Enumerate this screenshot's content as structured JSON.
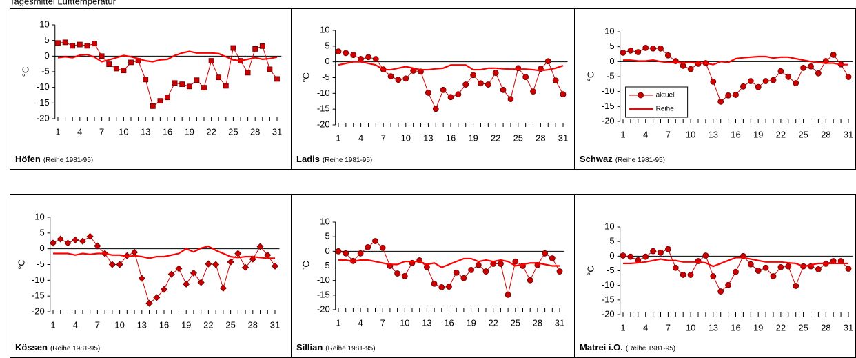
{
  "title": "Tagesmittel Lufttemperatur",
  "chart_data": [
    {
      "type": "line",
      "station": "Höfen",
      "note": "(Reihe 1981-95)",
      "ylabel": "°C",
      "marker": "square",
      "x": [
        1,
        2,
        3,
        4,
        5,
        6,
        7,
        8,
        9,
        10,
        11,
        12,
        13,
        14,
        15,
        16,
        17,
        18,
        19,
        20,
        21,
        22,
        23,
        24,
        25,
        26,
        27,
        28,
        29,
        30,
        31
      ],
      "xlim": [
        0.6,
        31.6
      ],
      "xticks": [
        1,
        4,
        7,
        10,
        13,
        16,
        19,
        22,
        25,
        28,
        31
      ],
      "ylim": [
        -20,
        10
      ],
      "yticks": [
        -20,
        -15,
        -10,
        -5,
        0,
        5,
        10
      ],
      "series": [
        {
          "color": "#cc0000",
          "values": [
            4.2,
            4.4,
            3.3,
            3.7,
            3.3,
            4.0,
            0,
            -2.6,
            -4,
            -4.6,
            -2,
            -1.5,
            -7.5,
            -16,
            -14.3,
            -13.2,
            -8.6,
            -9,
            -9.7,
            -7.7,
            -10.1,
            -1.5,
            -6.8,
            -9.5,
            2.6,
            -1.5,
            -5.3,
            2.3,
            3.2,
            -4.2,
            -7.3
          ]
        },
        {
          "color": "#ff0000",
          "values": [
            -0.5,
            -0.2,
            -0.5,
            0.3,
            0.5,
            -0.3,
            -1.8,
            -1.2,
            -0.5,
            0.2,
            -0.2,
            -0.8,
            -1.5,
            -1.8,
            -1.2,
            -1.0,
            0.2,
            1.0,
            1.5,
            1.0,
            1.0,
            1.0,
            0.8,
            -0.2,
            -1.2,
            -1.5,
            -1.0,
            -0.5,
            -1.0,
            -0.8,
            -0.3
          ]
        }
      ]
    },
    {
      "type": "line",
      "station": "Ladis",
      "note": "(Reihe 1981-95)",
      "ylabel": "°C",
      "marker": "circle",
      "x": [
        1,
        2,
        3,
        4,
        5,
        6,
        7,
        8,
        9,
        10,
        11,
        12,
        13,
        14,
        15,
        16,
        17,
        18,
        19,
        20,
        21,
        22,
        23,
        24,
        25,
        26,
        27,
        28,
        29,
        30,
        31
      ],
      "xlim": [
        0.6,
        31.6
      ],
      "xticks": [
        1,
        4,
        7,
        10,
        13,
        16,
        19,
        22,
        25,
        28,
        31
      ],
      "ylim": [
        -20,
        10
      ],
      "yticks": [
        -20,
        -15,
        -10,
        -5,
        0,
        5,
        10
      ],
      "series": [
        {
          "color": "#cc0000",
          "values": [
            3.3,
            2.8,
            2.2,
            0.9,
            1.5,
            0.9,
            -2.4,
            -4.6,
            -5.7,
            -5.3,
            -2.8,
            -3.1,
            -9.8,
            -14.9,
            -8.9,
            -11.2,
            -10.3,
            -7.2,
            -4.2,
            -6.8,
            -7.2,
            -3.5,
            -8.9,
            -11.8,
            -2,
            -4.8,
            -9.4,
            -2.2,
            0.2,
            -5.9,
            -10.3
          ]
        },
        {
          "color": "#ff0000",
          "values": [
            -1,
            -0.5,
            0,
            0,
            -0.5,
            -1,
            -2.5,
            -2.5,
            -2,
            -1.5,
            -2,
            -2.5,
            -2.5,
            -2.2,
            -2,
            -1,
            -1,
            -1,
            -2.5,
            -2.5,
            -2,
            -2,
            -2.2,
            -2.3,
            -2.3,
            -2.3,
            -2.5,
            -2.8,
            -2.5,
            -2,
            -1.2
          ]
        }
      ]
    },
    {
      "type": "line",
      "station": "Schwaz",
      "note": "(Reihe 1981-95)",
      "ylabel": "°C",
      "marker": "circle",
      "legend": "lower left",
      "x": [
        1,
        2,
        3,
        4,
        5,
        6,
        7,
        8,
        9,
        10,
        11,
        12,
        13,
        14,
        15,
        16,
        17,
        18,
        19,
        20,
        21,
        22,
        23,
        24,
        25,
        26,
        27,
        28,
        29,
        30,
        31
      ],
      "xlim": [
        0.6,
        31.6
      ],
      "xticks": [
        1,
        4,
        7,
        10,
        13,
        16,
        19,
        22,
        25,
        28,
        31
      ],
      "ylim": [
        -20,
        10
      ],
      "yticks": [
        -20,
        -15,
        -10,
        -5,
        0,
        5,
        10
      ],
      "series": [
        {
          "name": "aktuell",
          "color": "#cc0000",
          "values": [
            3,
            3.7,
            3.2,
            4.6,
            4.4,
            4.4,
            2.1,
            0.2,
            -1.4,
            -2.5,
            -0.7,
            -0.5,
            -6.7,
            -13.4,
            -11.3,
            -11.1,
            -8.3,
            -6.5,
            -8.5,
            -6.5,
            -6.2,
            -3.2,
            -5.1,
            -7.2,
            -2.1,
            -1.6,
            -3.9,
            0.2,
            2.3,
            -0.9,
            -5.1
          ]
        },
        {
          "name": "Reihe",
          "color": "#ff0000",
          "values": [
            0.5,
            0.5,
            0.2,
            0.2,
            0.5,
            0,
            -0.3,
            -0.3,
            -0.3,
            -0.3,
            -0.5,
            -0.5,
            -1.0,
            0,
            -0.3,
            1.0,
            1.3,
            1.5,
            1.7,
            1.7,
            1.2,
            1.5,
            1.5,
            1.0,
            0.5,
            0,
            -0.3,
            -0.5,
            -0.5,
            -1.0,
            -1.0
          ]
        }
      ]
    },
    {
      "type": "line",
      "station": "Kössen",
      "note": "(Reihe 1981-95)",
      "ylabel": "°C",
      "marker": "diamond",
      "x": [
        1,
        2,
        3,
        4,
        5,
        6,
        7,
        8,
        9,
        10,
        11,
        12,
        13,
        14,
        15,
        16,
        17,
        18,
        19,
        20,
        21,
        22,
        23,
        24,
        25,
        26,
        27,
        28,
        29,
        30,
        31
      ],
      "xlim": [
        0.6,
        31.6
      ],
      "xticks": [
        1,
        4,
        7,
        10,
        13,
        16,
        19,
        22,
        25,
        28,
        31
      ],
      "ylim": [
        -20,
        10
      ],
      "yticks": [
        -20,
        -15,
        -10,
        -5,
        0,
        5,
        10
      ],
      "series": [
        {
          "color": "#cc0000",
          "values": [
            1.8,
            3.1,
            1.8,
            2.8,
            2.4,
            3.9,
            0.9,
            -1.5,
            -5,
            -5,
            -2.2,
            -1.1,
            -9.4,
            -17.3,
            -15.5,
            -12.9,
            -8.1,
            -6.3,
            -11.2,
            -7.7,
            -10.7,
            -4.8,
            -5,
            -12.5,
            -4.2,
            -1.5,
            -5.9,
            -3.3,
            0.7,
            -2,
            -5.5
          ]
        },
        {
          "color": "#ff0000",
          "values": [
            -1.5,
            -1.5,
            -1.5,
            -2.0,
            -1.5,
            -1.8,
            -1.5,
            -1.5,
            -2.0,
            -2.0,
            -2.5,
            -2.2,
            -2.5,
            -3.0,
            -2.5,
            -2.5,
            -2.0,
            -1.5,
            0,
            -1.0,
            0.2,
            0.8,
            -0.5,
            -1.5,
            -2.5,
            -2.8,
            -2.5,
            -2.5,
            -2.8,
            -3.0,
            -3.0
          ]
        }
      ]
    },
    {
      "type": "line",
      "station": "Sillian",
      "note": "(Reihe 1981-95)",
      "ylabel": "°C",
      "marker": "circle",
      "x": [
        1,
        2,
        3,
        4,
        5,
        6,
        7,
        8,
        9,
        10,
        11,
        12,
        13,
        14,
        15,
        16,
        17,
        18,
        19,
        20,
        21,
        22,
        23,
        24,
        25,
        26,
        27,
        28,
        29,
        30,
        31
      ],
      "xlim": [
        0.6,
        31.6
      ],
      "xticks": [
        1,
        4,
        7,
        10,
        13,
        16,
        19,
        22,
        25,
        28,
        31
      ],
      "ylim": [
        -20,
        10
      ],
      "yticks": [
        -20,
        -15,
        -10,
        -5,
        0,
        5,
        10
      ],
      "series": [
        {
          "color": "#cc0000",
          "values": [
            0,
            -0.7,
            -3.3,
            -0.7,
            1.4,
            3.5,
            1.2,
            -5,
            -7.6,
            -8.5,
            -4,
            -3.1,
            -5.4,
            -11.1,
            -12.3,
            -12.1,
            -7.3,
            -9.2,
            -6.4,
            -4.7,
            -6.9,
            -4.3,
            -4.3,
            -14.9,
            -3.5,
            -5,
            -9.9,
            -4.7,
            -0.7,
            -2.4,
            -6.9
          ]
        },
        {
          "color": "#ff0000",
          "values": [
            -3,
            -3,
            -3.5,
            -3,
            -3,
            -3.5,
            -4,
            -4.5,
            -4.5,
            -3.5,
            -3.5,
            -3.5,
            -4.5,
            -4,
            -5.5,
            -4.5,
            -3.5,
            -2.5,
            -2.5,
            -3.5,
            -3,
            -3.5,
            -3,
            -3.5,
            -5,
            -4.5,
            -4,
            -4,
            -4.5,
            -5,
            -5
          ]
        }
      ]
    },
    {
      "type": "line",
      "station": "Matrei i.O.",
      "note": "(Reihe 1981-95)",
      "ylabel": "°C",
      "marker": "circle",
      "x": [
        1,
        2,
        3,
        4,
        5,
        6,
        7,
        8,
        9,
        10,
        11,
        12,
        13,
        14,
        15,
        16,
        17,
        18,
        19,
        20,
        21,
        22,
        23,
        24,
        25,
        26,
        27,
        28,
        29,
        30,
        31
      ],
      "xlim": [
        0.6,
        31.6
      ],
      "xticks": [
        1,
        4,
        7,
        10,
        13,
        16,
        19,
        22,
        25,
        28,
        31
      ],
      "ylim": [
        -20,
        10
      ],
      "yticks": [
        -20,
        -15,
        -10,
        -5,
        0,
        5,
        10
      ],
      "series": [
        {
          "color": "#cc0000",
          "values": [
            0.2,
            -0.2,
            -1.4,
            -0.2,
            1.7,
            1.2,
            2.4,
            -4,
            -6.4,
            -6.4,
            -1.7,
            0.2,
            -6.9,
            -12.1,
            -9.9,
            -5.4,
            0,
            -2.8,
            -5,
            -4,
            -6.9,
            -3.8,
            -3.5,
            -10.2,
            -3.5,
            -3.5,
            -4.5,
            -2.6,
            -1.7,
            -1.7,
            -4.3
          ]
        },
        {
          "color": "#ff0000",
          "values": [
            -2.5,
            -2.5,
            -2.3,
            -2,
            -1.5,
            -1,
            -1.5,
            -1.5,
            -2,
            -2,
            -2,
            -2.3,
            -3.5,
            -2.5,
            -1.5,
            -0.5,
            -0.5,
            -1,
            -1.5,
            -2,
            -2,
            -2,
            -2.3,
            -2.5,
            -3.5,
            -3,
            -2.5,
            -2.5,
            -2.5,
            -2.5,
            -2.5
          ]
        }
      ]
    }
  ]
}
